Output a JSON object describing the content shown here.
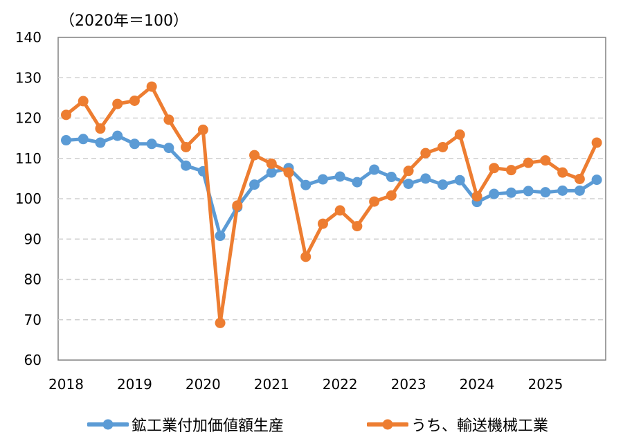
{
  "unit_label": "（2020年＝100）",
  "chart_data": {
    "type": "line",
    "title": "",
    "unit": "（2020年＝100）",
    "xlabel": "",
    "ylabel": "",
    "ylim": [
      60,
      140
    ],
    "yticks": [
      60,
      70,
      80,
      90,
      100,
      110,
      120,
      130,
      140
    ],
    "x_tick_labels": [
      "2018",
      "2019",
      "2020",
      "2021",
      "2022",
      "2023",
      "2024",
      "2025"
    ],
    "x_tick_positions": [
      0,
      4,
      8,
      12,
      16,
      20,
      24,
      28
    ],
    "grid": "horizontal dashed",
    "legend_position": "bottom",
    "series": [
      {
        "name": "鉱工業付加価値額生産",
        "color": "#5B9BD5",
        "values": [
          114.5,
          114.8,
          113.9,
          115.6,
          113.6,
          113.6,
          112.6,
          108.2,
          106.8,
          90.8,
          97.9,
          103.5,
          106.5,
          107.6,
          103.4,
          104.8,
          105.5,
          104.1,
          107.2,
          105.4,
          103.7,
          105,
          103.5,
          104.6,
          99.2,
          101.2,
          101.5,
          101.9,
          101.6,
          102,
          102,
          104.7
        ]
      },
      {
        "name": "うち、輸送機械工業",
        "color": "#ED7D31",
        "values": [
          120.8,
          124.2,
          117.4,
          123.5,
          124.3,
          127.8,
          119.6,
          112.8,
          117.1,
          69.2,
          98.3,
          110.8,
          108.7,
          106.5,
          85.6,
          93.8,
          97.1,
          93.2,
          99.3,
          100.8,
          106.9,
          111.3,
          112.8,
          115.9,
          100.6,
          107.6,
          107.1,
          108.9,
          109.5,
          106.5,
          104.9,
          113.9
        ]
      }
    ]
  }
}
